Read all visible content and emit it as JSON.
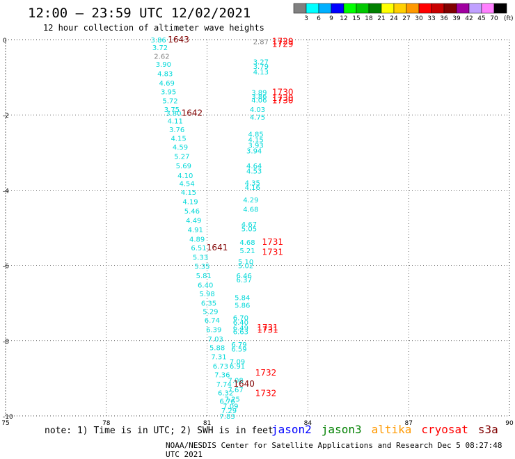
{
  "header": {
    "title": "12:00 — 23:59 UTC 12/02/2021",
    "subtitle": "12 hour collection of altimeter wave heights"
  },
  "legend": {
    "unit": "(ft)",
    "items": [
      {
        "label": "3",
        "color": "#808080"
      },
      {
        "label": "6",
        "color": "#00ffff"
      },
      {
        "label": "9",
        "color": "#00b0ff"
      },
      {
        "label": "12",
        "color": "#0000ff"
      },
      {
        "label": "15",
        "color": "#00ff00"
      },
      {
        "label": "18",
        "color": "#00c800"
      },
      {
        "label": "21",
        "color": "#008000"
      },
      {
        "label": "24",
        "color": "#ffff00"
      },
      {
        "label": "27",
        "color": "#ffd000"
      },
      {
        "label": "30",
        "color": "#ff9900"
      },
      {
        "label": "33",
        "color": "#ff0000"
      },
      {
        "label": "36",
        "color": "#c80000"
      },
      {
        "label": "39",
        "color": "#800000"
      },
      {
        "label": "42",
        "color": "#a000a0"
      },
      {
        "label": "45",
        "color": "#c0a0ff"
      },
      {
        "label": "70",
        "color": "#ff80ff"
      },
      {
        "label": "",
        "color": "#000000"
      }
    ]
  },
  "footer": {
    "note": "note: 1) Time is in UTC; 2) SWH is in feet",
    "satellites": [
      {
        "name": "jason2",
        "color": "#0000ff"
      },
      {
        "name": "jason3",
        "color": "#008000"
      },
      {
        "name": "altika",
        "color": "#ff9900"
      },
      {
        "name": "cryosat",
        "color": "#ff0000"
      },
      {
        "name": "s3a",
        "color": "#800000"
      }
    ],
    "credit": "NOAA/NESDIS Center for Satellite Applications and Research    Dec  5 08:27:48 UTC 2021"
  },
  "chart_data": {
    "type": "scatter",
    "xlim": [
      75,
      90
    ],
    "ylim": [
      -10,
      0
    ],
    "x_ticks": [
      "75",
      "78",
      "81",
      "84",
      "87",
      "90"
    ],
    "y_ticks": [
      "0",
      "-2",
      "-4",
      "-6",
      "-8",
      "-10"
    ],
    "grid": true,
    "track_west": [
      {
        "x": 79.55,
        "y": 0.0,
        "label": "3.86",
        "color": "#00d8d8"
      },
      {
        "x": 79.6,
        "y": -0.2,
        "label": "3.72",
        "color": "#00d8d8"
      },
      {
        "x": 79.65,
        "y": -0.43,
        "label": "2.62",
        "color": "#808080"
      },
      {
        "x": 79.7,
        "y": -0.65,
        "label": "3.90",
        "color": "#00d8d8"
      },
      {
        "x": 79.75,
        "y": -0.9,
        "label": "4.83",
        "color": "#00d8d8"
      },
      {
        "x": 79.8,
        "y": -1.15,
        "label": "4.69",
        "color": "#00d8d8"
      },
      {
        "x": 79.85,
        "y": -1.38,
        "label": "3.95",
        "color": "#00d8d8"
      },
      {
        "x": 79.9,
        "y": -1.62,
        "label": "5.72",
        "color": "#00d8d8"
      },
      {
        "x": 79.95,
        "y": -1.85,
        "label": "3.75",
        "color": "#00d8d8"
      },
      {
        "x": 80.0,
        "y": -1.95,
        "label": "3.80",
        "color": "#00d8d8"
      },
      {
        "x": 80.05,
        "y": -2.15,
        "label": "4.11",
        "color": "#00d8d8"
      },
      {
        "x": 80.1,
        "y": -2.38,
        "label": "3.76",
        "color": "#00d8d8"
      },
      {
        "x": 80.15,
        "y": -2.62,
        "label": "4.15",
        "color": "#00d8d8"
      },
      {
        "x": 80.2,
        "y": -2.85,
        "label": "4.59",
        "color": "#00d8d8"
      },
      {
        "x": 80.25,
        "y": -3.1,
        "label": "5.27",
        "color": "#00d8d8"
      },
      {
        "x": 80.3,
        "y": -3.35,
        "label": "5.69",
        "color": "#00d8d8"
      },
      {
        "x": 80.35,
        "y": -3.6,
        "label": "4.10",
        "color": "#00d8d8"
      },
      {
        "x": 80.4,
        "y": -3.82,
        "label": "4.54",
        "color": "#00d8d8"
      },
      {
        "x": 80.45,
        "y": -4.05,
        "label": "4.15",
        "color": "#00d8d8"
      },
      {
        "x": 80.5,
        "y": -4.3,
        "label": "4.19",
        "color": "#00d8d8"
      },
      {
        "x": 80.55,
        "y": -4.55,
        "label": "5.46",
        "color": "#00d8d8"
      },
      {
        "x": 80.6,
        "y": -4.8,
        "label": "4.49",
        "color": "#00d8d8"
      },
      {
        "x": 80.65,
        "y": -5.05,
        "label": "4.91",
        "color": "#00d8d8"
      },
      {
        "x": 80.7,
        "y": -5.3,
        "label": "4.89",
        "color": "#00d8d8"
      },
      {
        "x": 80.75,
        "y": -5.53,
        "label": "6.51",
        "color": "#00d8d8"
      },
      {
        "x": 80.8,
        "y": -5.78,
        "label": "5.33",
        "color": "#00d8d8"
      },
      {
        "x": 80.85,
        "y": -6.02,
        "label": "5.35",
        "color": "#00d8d8"
      },
      {
        "x": 80.9,
        "y": -6.27,
        "label": "5.81",
        "color": "#00d8d8"
      },
      {
        "x": 80.95,
        "y": -6.52,
        "label": "6.40",
        "color": "#00d8d8"
      },
      {
        "x": 81.0,
        "y": -6.75,
        "label": "5.98",
        "color": "#00d8d8"
      },
      {
        "x": 81.05,
        "y": -7.0,
        "label": "6.35",
        "color": "#00d8d8"
      },
      {
        "x": 81.1,
        "y": -7.22,
        "label": "5.29",
        "color": "#00d8d8"
      },
      {
        "x": 81.15,
        "y": -7.45,
        "label": "6.74",
        "color": "#00d8d8"
      },
      {
        "x": 81.2,
        "y": -7.7,
        "label": "6.39",
        "color": "#00d8d8"
      },
      {
        "x": 81.25,
        "y": -7.95,
        "label": "7.03",
        "color": "#00d8d8"
      },
      {
        "x": 81.3,
        "y": -8.18,
        "label": "5.88",
        "color": "#00d8d8"
      },
      {
        "x": 81.35,
        "y": -8.42,
        "label": "7.31",
        "color": "#00d8d8"
      },
      {
        "x": 81.4,
        "y": -8.67,
        "label": "6.73",
        "color": "#00d8d8"
      },
      {
        "x": 81.45,
        "y": -8.9,
        "label": "7.36",
        "color": "#00d8d8"
      },
      {
        "x": 81.5,
        "y": -9.15,
        "label": "7.74",
        "color": "#00d8d8"
      },
      {
        "x": 81.55,
        "y": -9.38,
        "label": "6.32",
        "color": "#00d8d8"
      },
      {
        "x": 81.6,
        "y": -9.6,
        "label": "6.76",
        "color": "#00d8d8"
      },
      {
        "x": 81.65,
        "y": -9.85,
        "label": "7.29",
        "color": "#00d8d8"
      },
      {
        "x": 81.6,
        "y": -10.0,
        "label": "7.83",
        "color": "#00d8d8"
      }
    ],
    "track_east": [
      {
        "x": 82.6,
        "y": -0.05,
        "label": "2.87",
        "color": "#808080"
      },
      {
        "x": 82.6,
        "y": -0.58,
        "label": "3.27",
        "color": "#00d8d8"
      },
      {
        "x": 82.6,
        "y": -0.7,
        "label": "3.79",
        "color": "#00d8d8"
      },
      {
        "x": 82.6,
        "y": -0.85,
        "label": "4.13",
        "color": "#00d8d8"
      },
      {
        "x": 82.55,
        "y": -1.4,
        "label": "3.89",
        "color": "#00d8d8"
      },
      {
        "x": 82.55,
        "y": -1.5,
        "label": "3.86",
        "color": "#00d8d8"
      },
      {
        "x": 82.55,
        "y": -1.6,
        "label": "4.06",
        "color": "#00d8d8"
      },
      {
        "x": 82.5,
        "y": -1.85,
        "label": "4.03",
        "color": "#00d8d8"
      },
      {
        "x": 82.5,
        "y": -2.05,
        "label": "4.75",
        "color": "#00d8d8"
      },
      {
        "x": 82.45,
        "y": -2.5,
        "label": "4.85",
        "color": "#00d8d8"
      },
      {
        "x": 82.45,
        "y": -2.65,
        "label": "4.15",
        "color": "#00d8d8"
      },
      {
        "x": 82.45,
        "y": -2.8,
        "label": "3.93",
        "color": "#00d8d8"
      },
      {
        "x": 82.4,
        "y": -2.95,
        "label": "3.94",
        "color": "#00d8d8"
      },
      {
        "x": 82.4,
        "y": -3.35,
        "label": "4.64",
        "color": "#00d8d8"
      },
      {
        "x": 82.4,
        "y": -3.48,
        "label": "4.53",
        "color": "#00d8d8"
      },
      {
        "x": 82.35,
        "y": -3.8,
        "label": "4.35",
        "color": "#00d8d8"
      },
      {
        "x": 82.35,
        "y": -3.92,
        "label": "4.16",
        "color": "#00d8d8"
      },
      {
        "x": 82.3,
        "y": -4.25,
        "label": "4.29",
        "color": "#00d8d8"
      },
      {
        "x": 82.3,
        "y": -4.5,
        "label": "4.68",
        "color": "#00d8d8"
      },
      {
        "x": 82.25,
        "y": -4.9,
        "label": "4.67",
        "color": "#00d8d8"
      },
      {
        "x": 82.25,
        "y": -5.02,
        "label": "5.05",
        "color": "#00d8d8"
      },
      {
        "x": 82.2,
        "y": -5.38,
        "label": "4.68",
        "color": "#00d8d8"
      },
      {
        "x": 82.2,
        "y": -5.6,
        "label": "5.21",
        "color": "#00d8d8"
      },
      {
        "x": 82.15,
        "y": -5.9,
        "label": "5.10",
        "color": "#00d8d8"
      },
      {
        "x": 82.15,
        "y": -6.0,
        "label": "5.02",
        "color": "#00d8d8"
      },
      {
        "x": 82.1,
        "y": -6.27,
        "label": "6.46",
        "color": "#00d8d8"
      },
      {
        "x": 82.1,
        "y": -6.38,
        "label": "6.37",
        "color": "#00d8d8"
      },
      {
        "x": 82.05,
        "y": -6.85,
        "label": "5.84",
        "color": "#00d8d8"
      },
      {
        "x": 82.05,
        "y": -7.05,
        "label": "5.86",
        "color": "#00d8d8"
      },
      {
        "x": 82.0,
        "y": -7.38,
        "label": "6.70",
        "color": "#00d8d8"
      },
      {
        "x": 82.0,
        "y": -7.5,
        "label": "6.40",
        "color": "#00d8d8"
      },
      {
        "x": 82.0,
        "y": -7.65,
        "label": "6.49",
        "color": "#00d8d8"
      },
      {
        "x": 82.0,
        "y": -7.75,
        "label": "6.63",
        "color": "#00d8d8"
      },
      {
        "x": 81.95,
        "y": -8.1,
        "label": "6.79",
        "color": "#00d8d8"
      },
      {
        "x": 81.95,
        "y": -8.22,
        "label": "6.59",
        "color": "#00d8d8"
      },
      {
        "x": 81.9,
        "y": -8.55,
        "label": "7.09",
        "color": "#00d8d8"
      },
      {
        "x": 81.9,
        "y": -8.67,
        "label": "6.91",
        "color": "#00d8d8"
      },
      {
        "x": 81.85,
        "y": -9.05,
        "label": "7.08",
        "color": "#00d8d8"
      },
      {
        "x": 81.85,
        "y": -9.3,
        "label": "7.67",
        "color": "#00d8d8"
      },
      {
        "x": 81.75,
        "y": -9.55,
        "label": "7.25",
        "color": "#00d8d8"
      },
      {
        "x": 81.7,
        "y": -9.73,
        "label": "7.09",
        "color": "#00d8d8"
      }
    ],
    "time_labels": [
      {
        "x": 80.15,
        "y": 0.0,
        "label": "1643",
        "color": "#800000"
      },
      {
        "x": 80.55,
        "y": -1.95,
        "label": "1642",
        "color": "#800000"
      },
      {
        "x": 81.3,
        "y": -5.53,
        "label": "1641",
        "color": "#800000"
      },
      {
        "x": 82.1,
        "y": -9.15,
        "label": "1640",
        "color": "#800000"
      },
      {
        "x": 83.25,
        "y": -0.05,
        "label": "1729",
        "color": "#ff0000"
      },
      {
        "x": 83.25,
        "y": -0.12,
        "label": "1729",
        "color": "#ff0000"
      },
      {
        "x": 83.25,
        "y": -1.4,
        "label": "1730",
        "color": "#ff0000"
      },
      {
        "x": 83.25,
        "y": -1.55,
        "label": "1730",
        "color": "#ff0000"
      },
      {
        "x": 83.25,
        "y": -1.62,
        "label": "1730",
        "color": "#ff0000"
      },
      {
        "x": 82.95,
        "y": -5.38,
        "label": "1731",
        "color": "#ff0000"
      },
      {
        "x": 82.95,
        "y": -5.65,
        "label": "1731",
        "color": "#ff0000"
      },
      {
        "x": 82.8,
        "y": -7.65,
        "label": "1731",
        "color": "#ff0000"
      },
      {
        "x": 82.8,
        "y": -7.72,
        "label": "1731",
        "color": "#ff0000"
      },
      {
        "x": 82.75,
        "y": -8.85,
        "label": "1732",
        "color": "#ff0000"
      },
      {
        "x": 82.75,
        "y": -9.4,
        "label": "1732",
        "color": "#ff0000"
      }
    ]
  }
}
